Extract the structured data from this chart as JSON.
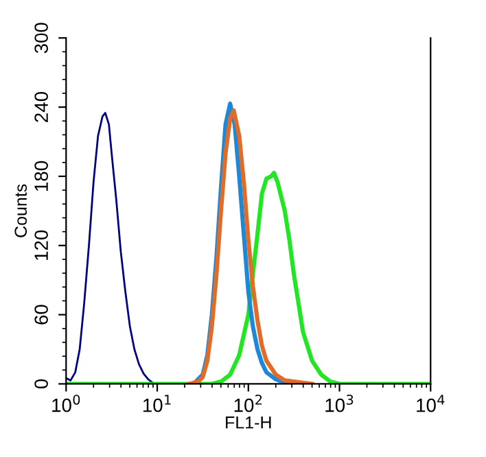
{
  "chart_data": {
    "type": "line",
    "xlabel": "FL1-H",
    "ylabel": "Counts",
    "log": "x",
    "grid": false,
    "marker": "none",
    "line_style": "solid",
    "xlim": [
      1,
      10000
    ],
    "xticks": [
      {
        "value": 1,
        "label": "10$^{0}$"
      },
      {
        "value": 10,
        "label": "10$^{1}$"
      },
      {
        "value": 100,
        "label": "10$^{2}$"
      },
      {
        "value": 1000,
        "label": "10$^{3}$"
      },
      {
        "value": 10000,
        "label": "10$^{4}$"
      }
    ],
    "ylim": [
      0,
      300
    ],
    "yticks": [
      0,
      60,
      120,
      180,
      240,
      300
    ],
    "series": [
      {
        "color": "#000080",
        "x": [
          1,
          1.12,
          1.26,
          1.41,
          1.58,
          1.78,
          2.0,
          2.24,
          2.51,
          2.69,
          2.95,
          3.16,
          3.55,
          3.98,
          4.47,
          5.01,
          5.62,
          6.31,
          7.08,
          7.94,
          8.91,
          10
        ],
        "values": [
          5,
          3,
          10,
          30,
          70,
          120,
          175,
          215,
          232,
          235,
          225,
          200,
          160,
          115,
          80,
          50,
          30,
          17,
          9,
          4,
          1,
          0
        ]
      },
      {
        "color": "#22e622",
        "x": [
          1,
          39.8,
          50.1,
          63.1,
          79.4,
          100,
          112,
          126,
          141,
          158,
          178,
          191,
          209,
          251,
          282,
          316,
          355,
          398,
          501,
          631,
          794,
          1000,
          10000
        ],
        "values": [
          0,
          0,
          2,
          8,
          25,
          60,
          95,
          130,
          165,
          178,
          180,
          183,
          175,
          150,
          125,
          95,
          70,
          45,
          20,
          8,
          2,
          0,
          0
        ]
      },
      {
        "color": "#1e88d8",
        "x": [
          25.1,
          31.6,
          35.5,
          39.8,
          44.7,
          50.1,
          56.2,
          63.1,
          70.8,
          79.4,
          89.1,
          100,
          112,
          126,
          141,
          158,
          200,
          251,
          316
        ],
        "values": [
          0,
          8,
          25,
          60,
          110,
          170,
          225,
          243,
          225,
          180,
          130,
          80,
          50,
          30,
          18,
          10,
          4,
          1,
          0
        ]
      },
      {
        "color": "#e06c28",
        "x": [
          22.4,
          28.2,
          31.6,
          35.5,
          39.8,
          44.7,
          50.1,
          56.2,
          63.1,
          69.2,
          79.4,
          89.1,
          100,
          112,
          126,
          141,
          158,
          200,
          251,
          316,
          398,
          501
        ],
        "values": [
          0,
          2,
          6,
          20,
          50,
          95,
          150,
          200,
          230,
          237,
          215,
          175,
          125,
          85,
          55,
          33,
          20,
          8,
          3,
          2,
          1,
          0
        ]
      }
    ]
  }
}
